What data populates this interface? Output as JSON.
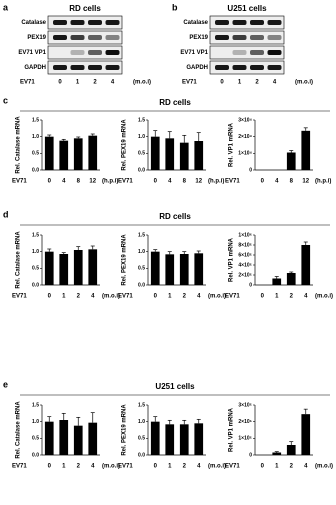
{
  "blots": [
    {
      "letter": "a",
      "title": "RD cells",
      "rows": [
        "Catalase",
        "PEX19",
        "EV71 VP1",
        "GAPDH"
      ],
      "lane_label": "EV71",
      "lanes": [
        "0",
        "1",
        "2",
        "4"
      ],
      "unit": "(m.o.i)"
    },
    {
      "letter": "b",
      "title": "U251 cells",
      "rows": [
        "Catalase",
        "PEX19",
        "EV71 VP1",
        "GAPDH"
      ],
      "lane_label": "EV71",
      "lanes": [
        "0",
        "1",
        "2",
        "4"
      ],
      "unit": "(m.o.i)"
    }
  ],
  "panels": [
    {
      "letter": "c",
      "title": "RD cells"
    },
    {
      "letter": "d",
      "title": "RD cells"
    },
    {
      "letter": "e",
      "title": "U251 cells"
    }
  ],
  "chart_data": [
    {
      "type": "bar",
      "ylabel": "Rel. Catalase mRNA",
      "xlabel": "EV71",
      "unit": "(h.p.i)",
      "categories": [
        "0",
        "4",
        "8",
        "12"
      ],
      "values": [
        1.0,
        0.88,
        0.95,
        1.03
      ],
      "errors": [
        0.05,
        0.04,
        0.04,
        0.05
      ],
      "ylim": [
        0,
        1.5
      ],
      "yticks": [
        {
          "value": 0,
          "label": "0.0"
        },
        {
          "value": 0.5,
          "label": "0.5"
        },
        {
          "value": 1,
          "label": "1.0"
        },
        {
          "value": 1.5,
          "label": "1.5"
        }
      ],
      "color": "#000000"
    },
    {
      "type": "bar",
      "ylabel": "Rel. PEX19 mRNA",
      "xlabel": "EV71",
      "unit": "(h.p.i)",
      "categories": [
        "0",
        "4",
        "8",
        "12"
      ],
      "values": [
        1.0,
        0.95,
        0.82,
        0.87
      ],
      "errors": [
        0.18,
        0.2,
        0.22,
        0.25
      ],
      "ylim": [
        0,
        1.5
      ],
      "yticks": [
        {
          "value": 0,
          "label": "0.0"
        },
        {
          "value": 0.5,
          "label": "0.5"
        },
        {
          "value": 1,
          "label": "1.0"
        },
        {
          "value": 1.5,
          "label": "1.5"
        }
      ],
      "color": "#000000"
    },
    {
      "type": "bar",
      "ylabel": "Rel. VP1 mRNA",
      "xlabel": "EV71",
      "unit": "(h.p.i)",
      "categories": [
        "0",
        "4",
        "8",
        "12"
      ],
      "values": [
        0,
        0,
        10500,
        23500
      ],
      "errors": [
        0,
        0,
        1200,
        1800
      ],
      "ylim": [
        0,
        30000
      ],
      "yticks": [
        0,
        {
          "value": 10000,
          "label": "1×10⁴"
        },
        {
          "value": 20000,
          "label": "2×10⁴"
        },
        {
          "value": 30000,
          "label": "3×10⁴"
        }
      ],
      "color": "#000000"
    },
    {
      "type": "bar",
      "ylabel": "Rel. Catalase mRNA",
      "xlabel": "EV71",
      "unit": "(m.o.i)",
      "categories": [
        "0",
        "1",
        "2",
        "4"
      ],
      "values": [
        1.0,
        0.93,
        1.05,
        1.07
      ],
      "errors": [
        0.08,
        0.04,
        0.1,
        0.1
      ],
      "ylim": [
        0,
        1.5
      ],
      "yticks": [
        {
          "value": 0,
          "label": "0.0"
        },
        {
          "value": 0.5,
          "label": "0.5"
        },
        {
          "value": 1,
          "label": "1.0"
        },
        {
          "value": 1.5,
          "label": "1.5"
        }
      ],
      "color": "#000000"
    },
    {
      "type": "bar",
      "ylabel": "Rel. PEX19 mRNA",
      "xlabel": "EV71",
      "unit": "(m.o.i)",
      "categories": [
        "0",
        "1",
        "2",
        "4"
      ],
      "values": [
        1.0,
        0.92,
        0.93,
        0.95
      ],
      "errors": [
        0.06,
        0.08,
        0.07,
        0.07
      ],
      "ylim": [
        0,
        1.5
      ],
      "yticks": [
        {
          "value": 0,
          "label": "0.0"
        },
        {
          "value": 0.5,
          "label": "0.5"
        },
        {
          "value": 1,
          "label": "1.0"
        },
        {
          "value": 1.5,
          "label": "1.5"
        }
      ],
      "color": "#000000"
    },
    {
      "type": "bar",
      "ylabel": "Rel. VP1 mRNA",
      "xlabel": "EV71",
      "unit": "(m.o.i)",
      "categories": [
        "0",
        "1",
        "2",
        "4"
      ],
      "values": [
        0,
        130000,
        240000,
        800000
      ],
      "errors": [
        0,
        40000,
        20000,
        60000
      ],
      "ylim": [
        0,
        1000000
      ],
      "yticks": [
        0,
        {
          "value": 200000,
          "label": "2×10⁵"
        },
        {
          "value": 400000,
          "label": "4×10⁵"
        },
        {
          "value": 600000,
          "label": "6×10⁵"
        },
        {
          "value": 800000,
          "label": "8×10⁵"
        },
        {
          "value": 1000000,
          "label": "1×10⁶"
        }
      ],
      "color": "#000000"
    },
    {
      "type": "bar",
      "ylabel": "Rel. Catalase mRNA",
      "xlabel": "EV71",
      "unit": "(m.o.i)",
      "categories": [
        "0",
        "1",
        "2",
        "4"
      ],
      "values": [
        1.0,
        1.05,
        0.88,
        0.97
      ],
      "errors": [
        0.15,
        0.2,
        0.25,
        0.3
      ],
      "ylim": [
        0,
        1.5
      ],
      "yticks": [
        {
          "value": 0,
          "label": "0.0"
        },
        {
          "value": 0.5,
          "label": "0.5"
        },
        {
          "value": 1,
          "label": "1.0"
        },
        {
          "value": 1.5,
          "label": "1.5"
        }
      ],
      "color": "#000000"
    },
    {
      "type": "bar",
      "ylabel": "Rel. PEX19 mRNA",
      "xlabel": "EV71",
      "unit": "(m.o.i)",
      "categories": [
        "0",
        "1",
        "2",
        "4"
      ],
      "values": [
        1.0,
        0.92,
        0.92,
        0.95
      ],
      "errors": [
        0.15,
        0.12,
        0.12,
        0.12
      ],
      "ylim": [
        0,
        1.5
      ],
      "yticks": [
        {
          "value": 0,
          "label": "0.0"
        },
        {
          "value": 0.5,
          "label": "0.5"
        },
        {
          "value": 1,
          "label": "1.0"
        },
        {
          "value": 1.5,
          "label": "1.5"
        }
      ],
      "color": "#000000"
    },
    {
      "type": "bar",
      "ylabel": "Rel. VP1 mRNA",
      "xlabel": "EV71",
      "unit": "(m.o.i)",
      "categories": [
        "0",
        "1",
        "2",
        "4"
      ],
      "values": [
        0,
        15000,
        60000,
        245000
      ],
      "errors": [
        0,
        5000,
        20000,
        30000
      ],
      "ylim": [
        0,
        300000
      ],
      "yticks": [
        0,
        {
          "value": 100000,
          "label": "1×10⁵"
        },
        {
          "value": 200000,
          "label": "2×10⁵"
        },
        {
          "value": 300000,
          "label": "3×10⁵"
        }
      ],
      "color": "#000000"
    }
  ]
}
